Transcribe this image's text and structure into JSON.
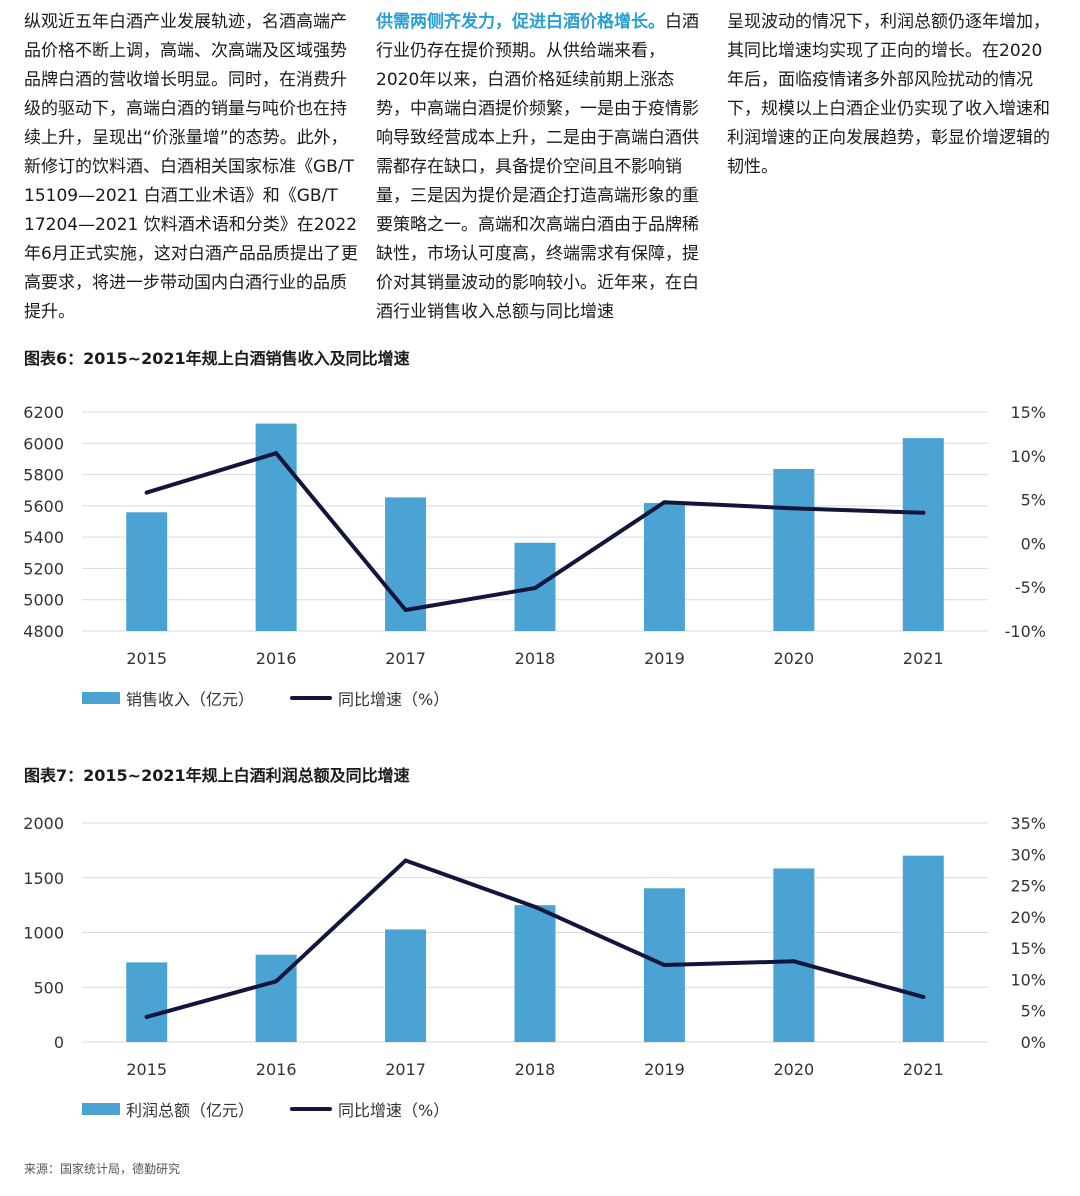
{
  "text": {
    "col1": "纵观近五年白酒产业发展轨迹，名酒高端产品价格不断上调，高端、次高端及区域强势品牌白酒的营收增长明显。同时，在消费升级的驱动下，高端白酒的销量与吨价也在持续上升，呈现出“价涨量增”的态势。此外，新修订的饮料酒、白酒相关国家标准《GB/T 15109—2021 白酒工业术语》和《GB/T 17204—2021 饮料酒术语和分类》在2022年6月正式实施，这对白酒产品品质提出了更高要求，将进一步带动国内白酒行业的品质提升。",
    "col2_heading": "供需两侧齐发力，促进白酒价格增长。",
    "col2": "白酒行业仍存在提价预期。从供给端来看，2020年以来，白酒价格延续前期上涨态势，中高端白酒提价频繁，一是由于疫情影响导致经营成本上升，二是由于高端白酒供需都存在缺口，具备提价空间且不影响销量，三是因为提价是酒企打造高端形象的重要策略之一。高端和次高端白酒由于品牌稀缺性，市场认可度高，终端需求有保障，提价对其销量波动的影响较小。近年来，在白酒行业销售收入总额与同比增速",
    "col3": "呈现波动的情况下，利润总额仍逐年增加，其同比增速均实现了正向的增长。在2020年后，面临疫情诸多外部风险扰动的情况下，规模以上白酒企业仍实现了收入增速和利润增速的正向发展趋势，彰显价增逻辑的韧性。"
  },
  "chart1": {
    "title": "图表6：2015~2021年规上白酒销售收入及同比增速",
    "legend_bar": "销售收入（亿元）",
    "legend_line": "同比增速（%）"
  },
  "chart2": {
    "title": "图表7：2015~2021年规上白酒利润总额及同比增速",
    "legend_bar": "利润总额（亿元）",
    "legend_line": "同比增速（%）"
  },
  "source": "来源：国家统计局，德勤研究",
  "colors": {
    "bar": "#4ba3d3",
    "line": "#12163d",
    "accent": "#2a9fd6"
  },
  "chart_data": [
    {
      "type": "bar",
      "title": "图表6：2015~2021年规上白酒销售收入及同比增速",
      "categories": [
        "2015",
        "2016",
        "2017",
        "2018",
        "2019",
        "2020",
        "2021"
      ],
      "series": [
        {
          "name": "销售收入（亿元）",
          "type": "bar",
          "axis": "left",
          "values": [
            5559,
            6126,
            5654,
            5364,
            5618,
            5836,
            6033
          ]
        },
        {
          "name": "同比增速（%）",
          "type": "line",
          "axis": "right",
          "values": [
            5.8,
            10.3,
            -7.6,
            -5.1,
            4.7,
            4.0,
            3.5
          ]
        }
      ],
      "ylim": [
        4800,
        6200
      ],
      "yticks": [
        "6200",
        "6000",
        "5800",
        "5600",
        "5400",
        "5200",
        "5000",
        "4800"
      ],
      "y2lim": [
        -10,
        15
      ],
      "y2ticks": [
        "15%",
        "10%",
        "5%",
        "0%",
        "-5%",
        "-10%"
      ]
    },
    {
      "type": "bar",
      "title": "图表7：2015~2021年规上白酒利润总额及同比增速",
      "categories": [
        "2015",
        "2016",
        "2017",
        "2018",
        "2019",
        "2020",
        "2021"
      ],
      "series": [
        {
          "name": "利润总额（亿元）",
          "type": "bar",
          "axis": "left",
          "values": [
            727,
            797,
            1028,
            1250,
            1404,
            1585,
            1702
          ]
        },
        {
          "name": "同比增速（%）",
          "type": "line",
          "axis": "right",
          "values": [
            4.0,
            9.7,
            29.0,
            21.6,
            12.3,
            12.9,
            7.2
          ]
        }
      ],
      "ylim": [
        0,
        2000
      ],
      "yticks": [
        "2000",
        "1500",
        "1000",
        "500",
        "0"
      ],
      "y2lim": [
        0,
        35
      ],
      "y2ticks": [
        "35%",
        "30%",
        "25%",
        "20%",
        "15%",
        "10%",
        "5%",
        "0%"
      ]
    }
  ]
}
